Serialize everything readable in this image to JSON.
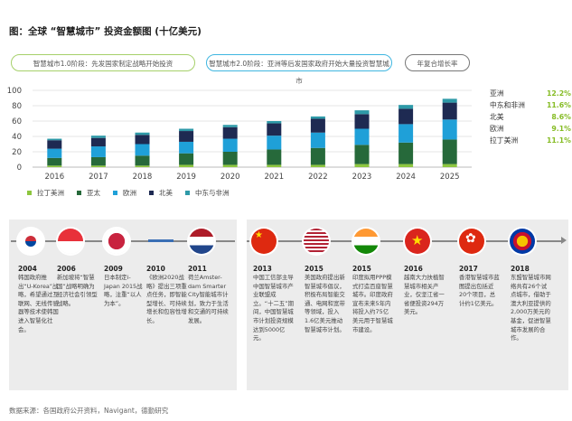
{
  "title": "图：全球 “智慧城市” 投资金额图 (十亿美元)",
  "phases": [
    "智慧城市1.0阶段：先发国家制定战略开始投资",
    "智慧城市2.0阶段：亚洲等后发国家政府开始大量投资智慧城市",
    "年复合增长率"
  ],
  "colors": {
    "latam": "#8dc63f",
    "apac": "#26693a",
    "europe": "#1fa0d8",
    "na": "#1e2a52",
    "mea": "#2e9aa8",
    "accent": "#86bc25"
  },
  "chart_data": {
    "type": "bar",
    "stacked": true,
    "title": "全球 “智慧城市” 投资金额图 (十亿美元)",
    "categories": [
      "2016",
      "2017",
      "2018",
      "2019",
      "2020",
      "2021",
      "2022",
      "2023",
      "2024",
      "2025"
    ],
    "ylim": [
      0,
      100
    ],
    "yticks": [
      0,
      20,
      40,
      60,
      80,
      100
    ],
    "grid": true,
    "legend": "bottom",
    "series": [
      {
        "name": "拉丁美洲",
        "values": [
          2,
          2,
          2,
          3,
          3,
          3,
          3,
          4,
          4,
          4
        ]
      },
      {
        "name": "亚太",
        "values": [
          10,
          11,
          13,
          15,
          17,
          20,
          22,
          25,
          28,
          32
        ]
      },
      {
        "name": "欧洲",
        "values": [
          12,
          14,
          15,
          15,
          17,
          18,
          20,
          21,
          24,
          26
        ]
      },
      {
        "name": "北美",
        "values": [
          11,
          11,
          12,
          14,
          15,
          16,
          18,
          19,
          20,
          22
        ]
      },
      {
        "name": "中东与非洲",
        "values": [
          2,
          3,
          3,
          3,
          3,
          3,
          3,
          5,
          5,
          5
        ]
      }
    ]
  },
  "cagr": [
    {
      "region": "亚洲",
      "value": "12.2%"
    },
    {
      "region": "中东和非洲",
      "value": "11.6%"
    },
    {
      "region": "北美",
      "value": "8.6%"
    },
    {
      "region": "欧洲",
      "value": "9.1%"
    },
    {
      "region": "拉丁美洲",
      "value": "11.1%"
    }
  ],
  "timeline": [
    {
      "year": "2004",
      "flag": "korea",
      "text": "韩国政府推出“U-Korea”战略，希望通过互联网、无线传感器等技术使韩国进入智慧化社会。"
    },
    {
      "year": "2006",
      "flag": "singapore",
      "text": "新加坡将“智慧国”战略明确为经济社会引领型战略。"
    },
    {
      "year": "2009",
      "flag": "japan",
      "text": "日本制定i-Japan 2015战略，注重“以人为本”。"
    },
    {
      "year": "2010",
      "flag": "eu",
      "text": "《欧洲2020战略》提出三项重点任务，即智能型增长、可持续增长和包容性增长。"
    },
    {
      "year": "2011",
      "flag": "netherlands",
      "text": "荷兰Amster-dam Smarter City智能城市计划，致力于生活和交通的可持续发展。"
    },
    {
      "year": "2013",
      "flag": "china",
      "text": "中国工信部主导中国智慧城市产业联盟成立。“十二五”期间，中国智慧城市计划投资规模达到5000亿元。"
    },
    {
      "year": "2015",
      "flag": "usa",
      "text": "美国政府提出新智慧城市倡议，积极布局智能交通、电网和宽带等领域，投入1.6亿美元推动智慧城市计划。"
    },
    {
      "year": "2015",
      "flag": "india",
      "text": "印度拟用PPP模式打造百座智慧城市。印度政府宣布未来5年内将投入约75亿美元用于智慧城市建设。"
    },
    {
      "year": "2016",
      "flag": "vietnam",
      "text": "越南大力扶植智慧城市相关产业，仅坚江省一省便投资294万美元。"
    },
    {
      "year": "2017",
      "flag": "hongkong",
      "text": "香港智慧城市蓝图提出包括近20个项目，总计约1亿美元。"
    },
    {
      "year": "2018",
      "flag": "asean",
      "text": "东盟智慧城市网络共有26个试点城市，借助于澳大利亚提供的2,000万美元的基金，促进智慧城市发展的合作。"
    }
  ],
  "source": "数据来源：各国政府公开资料，Navigant，德勤研究"
}
